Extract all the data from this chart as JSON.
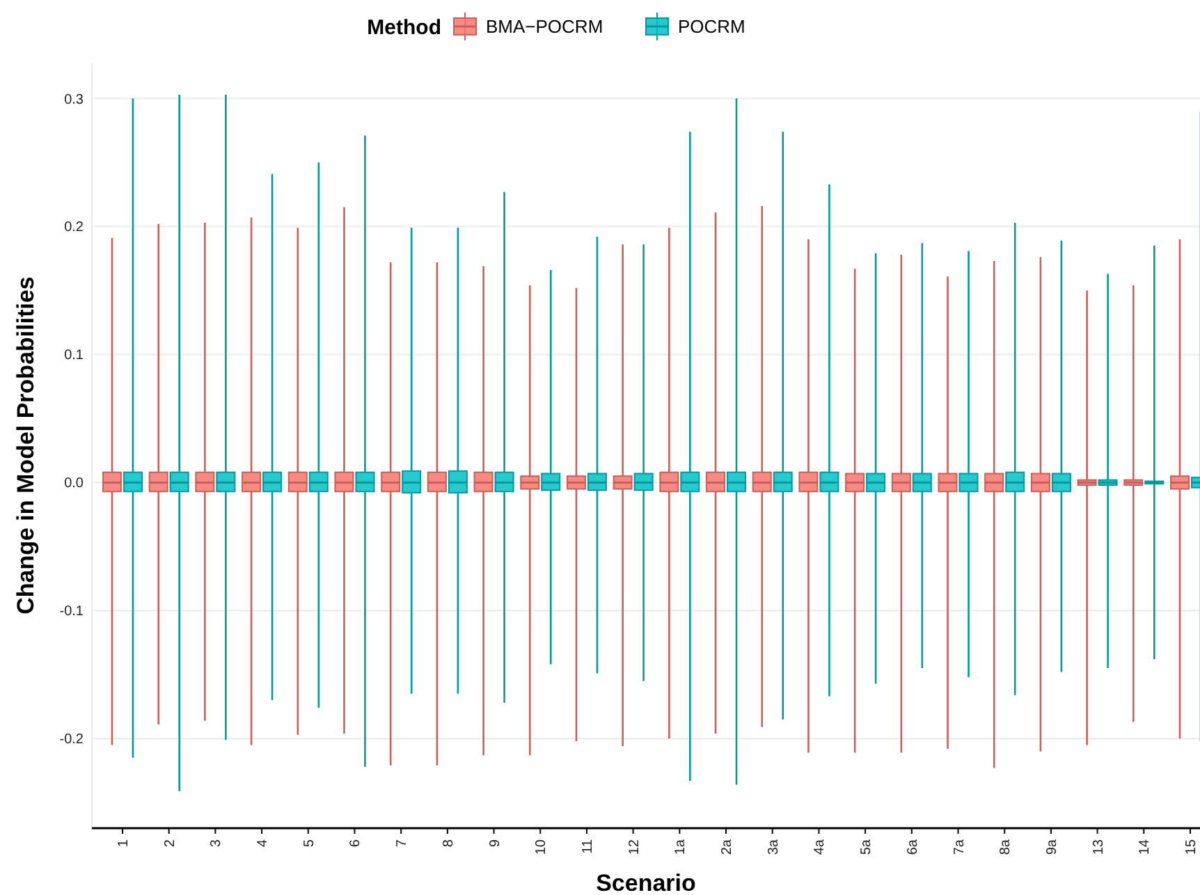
{
  "chart_data": {
    "type": "box",
    "xlabel": "Scenario",
    "ylabel": "Change in Model Probabilities",
    "legend_title": "Method",
    "legend": "top",
    "grid": "y",
    "categories": [
      "1",
      "2",
      "3",
      "4",
      "5",
      "6",
      "7",
      "8",
      "9",
      "10",
      "11",
      "12",
      "1a",
      "2a",
      "3a",
      "4a",
      "5a",
      "6a",
      "7a",
      "8a",
      "9a",
      "13",
      "14",
      "15"
    ],
    "ylim": [
      -0.27,
      0.328
    ],
    "yticks": [
      -0.2,
      -0.1,
      {
        "value": 0,
        "label": "0.0"
      },
      0.1,
      0.2,
      0.3
    ],
    "series": [
      {
        "name": "BMA−POCRM",
        "color": "#f8766d",
        "boxes": [
          {
            "low": -0.205,
            "q1": -0.007,
            "median": 0,
            "q3": 0.008,
            "high": 0.191
          },
          {
            "low": -0.189,
            "q1": -0.007,
            "median": 0,
            "q3": 0.008,
            "high": 0.202
          },
          {
            "low": -0.186,
            "q1": -0.007,
            "median": 0,
            "q3": 0.008,
            "high": 0.203
          },
          {
            "low": -0.205,
            "q1": -0.007,
            "median": 0,
            "q3": 0.008,
            "high": 0.207
          },
          {
            "low": -0.197,
            "q1": -0.007,
            "median": 0,
            "q3": 0.008,
            "high": 0.199
          },
          {
            "low": -0.196,
            "q1": -0.007,
            "median": 0,
            "q3": 0.008,
            "high": 0.215
          },
          {
            "low": -0.221,
            "q1": -0.007,
            "median": 0,
            "q3": 0.008,
            "high": 0.172
          },
          {
            "low": -0.221,
            "q1": -0.007,
            "median": 0,
            "q3": 0.008,
            "high": 0.172
          },
          {
            "low": -0.213,
            "q1": -0.007,
            "median": 0,
            "q3": 0.008,
            "high": 0.169
          },
          {
            "low": -0.213,
            "q1": -0.005,
            "median": 0,
            "q3": 0.005,
            "high": 0.154
          },
          {
            "low": -0.202,
            "q1": -0.005,
            "median": 0,
            "q3": 0.005,
            "high": 0.152
          },
          {
            "low": -0.206,
            "q1": -0.005,
            "median": 0,
            "q3": 0.005,
            "high": 0.186
          },
          {
            "low": -0.2,
            "q1": -0.007,
            "median": 0,
            "q3": 0.008,
            "high": 0.199
          },
          {
            "low": -0.196,
            "q1": -0.007,
            "median": 0,
            "q3": 0.008,
            "high": 0.211
          },
          {
            "low": -0.191,
            "q1": -0.007,
            "median": 0,
            "q3": 0.008,
            "high": 0.216
          },
          {
            "low": -0.211,
            "q1": -0.007,
            "median": 0,
            "q3": 0.008,
            "high": 0.19
          },
          {
            "low": -0.211,
            "q1": -0.007,
            "median": 0,
            "q3": 0.007,
            "high": 0.167
          },
          {
            "low": -0.211,
            "q1": -0.007,
            "median": 0,
            "q3": 0.007,
            "high": 0.178
          },
          {
            "low": -0.208,
            "q1": -0.007,
            "median": 0,
            "q3": 0.007,
            "high": 0.161
          },
          {
            "low": -0.223,
            "q1": -0.007,
            "median": 0,
            "q3": 0.007,
            "high": 0.173
          },
          {
            "low": -0.21,
            "q1": -0.007,
            "median": 0,
            "q3": 0.007,
            "high": 0.176
          },
          {
            "low": -0.205,
            "q1": -0.002,
            "median": 0,
            "q3": 0.002,
            "high": 0.15
          },
          {
            "low": -0.187,
            "q1": -0.002,
            "median": 0,
            "q3": 0.002,
            "high": 0.154
          },
          {
            "low": -0.2,
            "q1": -0.005,
            "median": 0,
            "q3": 0.005,
            "high": 0.19
          }
        ]
      },
      {
        "name": "POCRM",
        "color": "#00bfc4",
        "boxes": [
          {
            "low": -0.215,
            "q1": -0.007,
            "median": 0,
            "q3": 0.008,
            "high": 0.3
          },
          {
            "low": -0.241,
            "q1": -0.007,
            "median": 0,
            "q3": 0.008,
            "high": 0.303
          },
          {
            "low": -0.201,
            "q1": -0.007,
            "median": 0,
            "q3": 0.008,
            "high": 0.303
          },
          {
            "low": -0.17,
            "q1": -0.007,
            "median": 0,
            "q3": 0.008,
            "high": 0.241
          },
          {
            "low": -0.176,
            "q1": -0.007,
            "median": 0,
            "q3": 0.008,
            "high": 0.25
          },
          {
            "low": -0.222,
            "q1": -0.007,
            "median": 0,
            "q3": 0.008,
            "high": 0.271
          },
          {
            "low": -0.165,
            "q1": -0.008,
            "median": 0,
            "q3": 0.009,
            "high": 0.199
          },
          {
            "low": -0.165,
            "q1": -0.008,
            "median": 0,
            "q3": 0.009,
            "high": 0.199
          },
          {
            "low": -0.172,
            "q1": -0.007,
            "median": 0,
            "q3": 0.008,
            "high": 0.227
          },
          {
            "low": -0.142,
            "q1": -0.006,
            "median": 0,
            "q3": 0.007,
            "high": 0.166
          },
          {
            "low": -0.149,
            "q1": -0.006,
            "median": 0,
            "q3": 0.007,
            "high": 0.192
          },
          {
            "low": -0.155,
            "q1": -0.006,
            "median": 0,
            "q3": 0.007,
            "high": 0.186
          },
          {
            "low": -0.233,
            "q1": -0.007,
            "median": 0,
            "q3": 0.008,
            "high": 0.274
          },
          {
            "low": -0.236,
            "q1": -0.007,
            "median": 0,
            "q3": 0.008,
            "high": 0.3
          },
          {
            "low": -0.185,
            "q1": -0.007,
            "median": 0,
            "q3": 0.008,
            "high": 0.274
          },
          {
            "low": -0.167,
            "q1": -0.007,
            "median": 0,
            "q3": 0.008,
            "high": 0.233
          },
          {
            "low": -0.157,
            "q1": -0.007,
            "median": 0,
            "q3": 0.007,
            "high": 0.179
          },
          {
            "low": -0.145,
            "q1": -0.007,
            "median": 0,
            "q3": 0.007,
            "high": 0.187
          },
          {
            "low": -0.152,
            "q1": -0.007,
            "median": 0,
            "q3": 0.007,
            "high": 0.181
          },
          {
            "low": -0.166,
            "q1": -0.007,
            "median": 0,
            "q3": 0.008,
            "high": 0.203
          },
          {
            "low": -0.148,
            "q1": -0.007,
            "median": 0,
            "q3": 0.007,
            "high": 0.189
          },
          {
            "low": -0.145,
            "q1": -0.002,
            "median": 0,
            "q3": 0.002,
            "high": 0.163
          },
          {
            "low": -0.138,
            "q1": -0.001,
            "median": 0,
            "q3": 0.001,
            "high": 0.185
          },
          {
            "low": -0.202,
            "q1": -0.004,
            "median": 0,
            "q3": 0.004,
            "high": 0.29
          }
        ]
      }
    ]
  }
}
